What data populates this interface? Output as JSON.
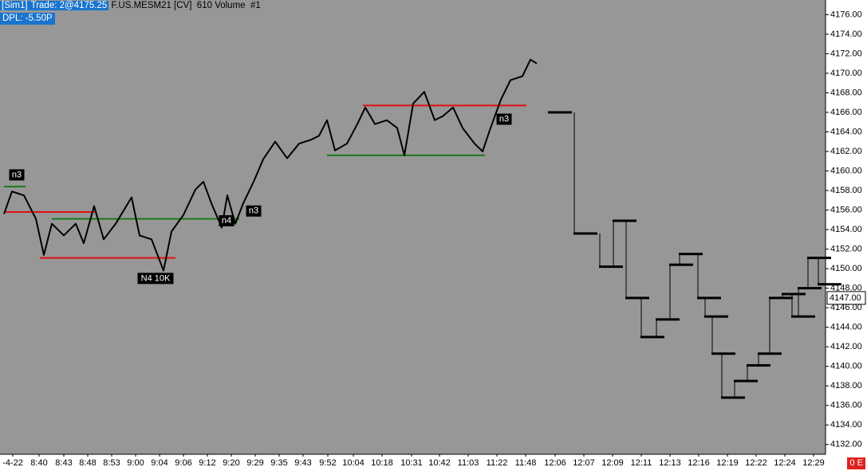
{
  "header": {
    "account": "[Sim1]",
    "trade": "Trade: 2@4175.25",
    "instrument": "F.US.MESM21 [CV]  610 Volume  #1",
    "dpl": "DPL: -5.50P"
  },
  "status": "0 E",
  "chart_data": {
    "type": "line",
    "xlim": [
      0,
      1035
    ],
    "ylim": [
      4131,
      4177.5
    ],
    "xticks": [
      {
        "value": 16,
        "label": "-4-22"
      },
      {
        "value": 49,
        "label": "8:40"
      },
      {
        "value": 80,
        "label": "8:43"
      },
      {
        "value": 110,
        "label": "8:48"
      },
      {
        "value": 140,
        "label": "8:53"
      },
      {
        "value": 170,
        "label": "9:00"
      },
      {
        "value": 200,
        "label": "9:04"
      },
      {
        "value": 230,
        "label": "9:06"
      },
      {
        "value": 260,
        "label": "9:12"
      },
      {
        "value": 290,
        "label": "9:20"
      },
      {
        "value": 320,
        "label": "9:29"
      },
      {
        "value": 350,
        "label": "9:35"
      },
      {
        "value": 380,
        "label": "9:43"
      },
      {
        "value": 411,
        "label": "9:52"
      },
      {
        "value": 443,
        "label": "10:04"
      },
      {
        "value": 479,
        "label": "10:18"
      },
      {
        "value": 516,
        "label": "10:31"
      },
      {
        "value": 551,
        "label": "10:42"
      },
      {
        "value": 587,
        "label": "11:03"
      },
      {
        "value": 623,
        "label": "11:22"
      },
      {
        "value": 659,
        "label": "11:48"
      },
      {
        "value": 696,
        "label": "12:06"
      },
      {
        "value": 732,
        "label": "12:07"
      },
      {
        "value": 768,
        "label": "12:09"
      },
      {
        "value": 804,
        "label": "12:11"
      },
      {
        "value": 840,
        "label": "12:13"
      },
      {
        "value": 876,
        "label": "12:16"
      },
      {
        "value": 912,
        "label": "12:19"
      },
      {
        "value": 948,
        "label": "12:22"
      },
      {
        "value": 984,
        "label": "12:24"
      },
      {
        "value": 1020,
        "label": "12:29"
      }
    ],
    "yticks": [
      {
        "value": 4132,
        "label": "4132.00"
      },
      {
        "value": 4134,
        "label": "4134.00"
      },
      {
        "value": 4136,
        "label": "4136.00"
      },
      {
        "value": 4138,
        "label": "4138.00"
      },
      {
        "value": 4140,
        "label": "4140.00"
      },
      {
        "value": 4142,
        "label": "4142.00"
      },
      {
        "value": 4144,
        "label": "4144.00"
      },
      {
        "value": 4146,
        "label": "4146.00"
      },
      {
        "value": 4148,
        "label": "4148.00"
      },
      {
        "value": 4150,
        "label": "4150.00"
      },
      {
        "value": 4152,
        "label": "4152.00"
      },
      {
        "value": 4154,
        "label": "4154.00"
      },
      {
        "value": 4156,
        "label": "4156.00"
      },
      {
        "value": 4158,
        "label": "4158.00"
      },
      {
        "value": 4160,
        "label": "4160.00"
      },
      {
        "value": 4162,
        "label": "4162.00"
      },
      {
        "value": 4164,
        "label": "4164.00"
      },
      {
        "value": 4166,
        "label": "4166.00"
      },
      {
        "value": 4168,
        "label": "4168.00"
      },
      {
        "value": 4170,
        "label": "4170.00"
      },
      {
        "value": 4172,
        "label": "4172.00"
      },
      {
        "value": 4174,
        "label": "4174.00"
      },
      {
        "value": 4176,
        "label": "4176.00"
      }
    ],
    "current_price": {
      "value": 4147,
      "label": "4147.00"
    },
    "series": [
      {
        "color": "#000000",
        "x": [
          5,
          15,
          30,
          45,
          55,
          65,
          80,
          95,
          105,
          118,
          130,
          145,
          165,
          175,
          190,
          205,
          215,
          230,
          245,
          255,
          265,
          278,
          285,
          295,
          305,
          318,
          330,
          345,
          360,
          375,
          390,
          400,
          410,
          420,
          435,
          448,
          458,
          470,
          485,
          498,
          507,
          518,
          532,
          545,
          555,
          568,
          580,
          595,
          605,
          615,
          628,
          640,
          655,
          665,
          673
        ],
        "values": [
          4155.6,
          4157.9,
          4157.5,
          4155.1,
          4151.4,
          4154.6,
          4153.4,
          4154.6,
          4152.6,
          4156.4,
          4153.0,
          4154.6,
          4157.3,
          4153.4,
          4153.0,
          4149.8,
          4153.8,
          4155.5,
          4158.1,
          4158.9,
          4156.7,
          4154.2,
          4157.5,
          4154.6,
          4156.7,
          4158.9,
          4161.2,
          4163.0,
          4161.3,
          4162.8,
          4163.2,
          4163.6,
          4165.2,
          4162.1,
          4162.8,
          4164.8,
          4166.5,
          4164.8,
          4165.2,
          4164.4,
          4161.6,
          4166.9,
          4168.1,
          4165.2,
          4165.6,
          4166.5,
          4164.4,
          4162.8,
          4162.0,
          4164.4,
          4167.3,
          4169.3,
          4169.7,
          4171.4,
          4171.0
        ]
      },
      {
        "color": "#000000",
        "style": "bars",
        "x": [
          688,
          720,
          752,
          769,
          785,
          804,
          823,
          840,
          852,
          875,
          884,
          893,
          905,
          921,
          937,
          951,
          965,
          981,
          993,
          1001,
          1013,
          1026
        ],
        "values": [
          4166.0,
          4153.6,
          4150.2,
          4154.9,
          4147.0,
          4143.0,
          4144.8,
          4150.4,
          4151.5,
          4147.0,
          4145.1,
          4141.3,
          4136.8,
          4138.5,
          4140.1,
          4141.3,
          4147.0,
          4147.4,
          4145.1,
          4148.0,
          4151.1,
          4148.4
        ]
      }
    ],
    "levels": [
      {
        "color": "#1a7a1a",
        "value": 4158.4,
        "x": [
          5,
          32
        ]
      },
      {
        "color": "#e01010",
        "value": 4155.8,
        "x": [
          5,
          120
        ]
      },
      {
        "color": "#1a7a1a",
        "value": 4155.1,
        "x": [
          65,
          300
        ]
      },
      {
        "color": "#e01010",
        "value": 4151.1,
        "x": [
          50,
          220
        ]
      },
      {
        "color": "#1a7a1a",
        "value": 4161.6,
        "x": [
          410,
          608
        ]
      },
      {
        "color": "#e01010",
        "value": 4166.7,
        "x": [
          455,
          660
        ]
      }
    ],
    "annotations": [
      {
        "text": "n3",
        "x": 21,
        "y": 4159.6
      },
      {
        "text": "N4 10K",
        "x": 195,
        "y": 4149.0
      },
      {
        "text": "n4",
        "x": 284,
        "y": 4154.9
      },
      {
        "text": "n3",
        "x": 318,
        "y": 4155.9
      },
      {
        "text": "n3",
        "x": 632,
        "y": 4165.3
      }
    ]
  }
}
